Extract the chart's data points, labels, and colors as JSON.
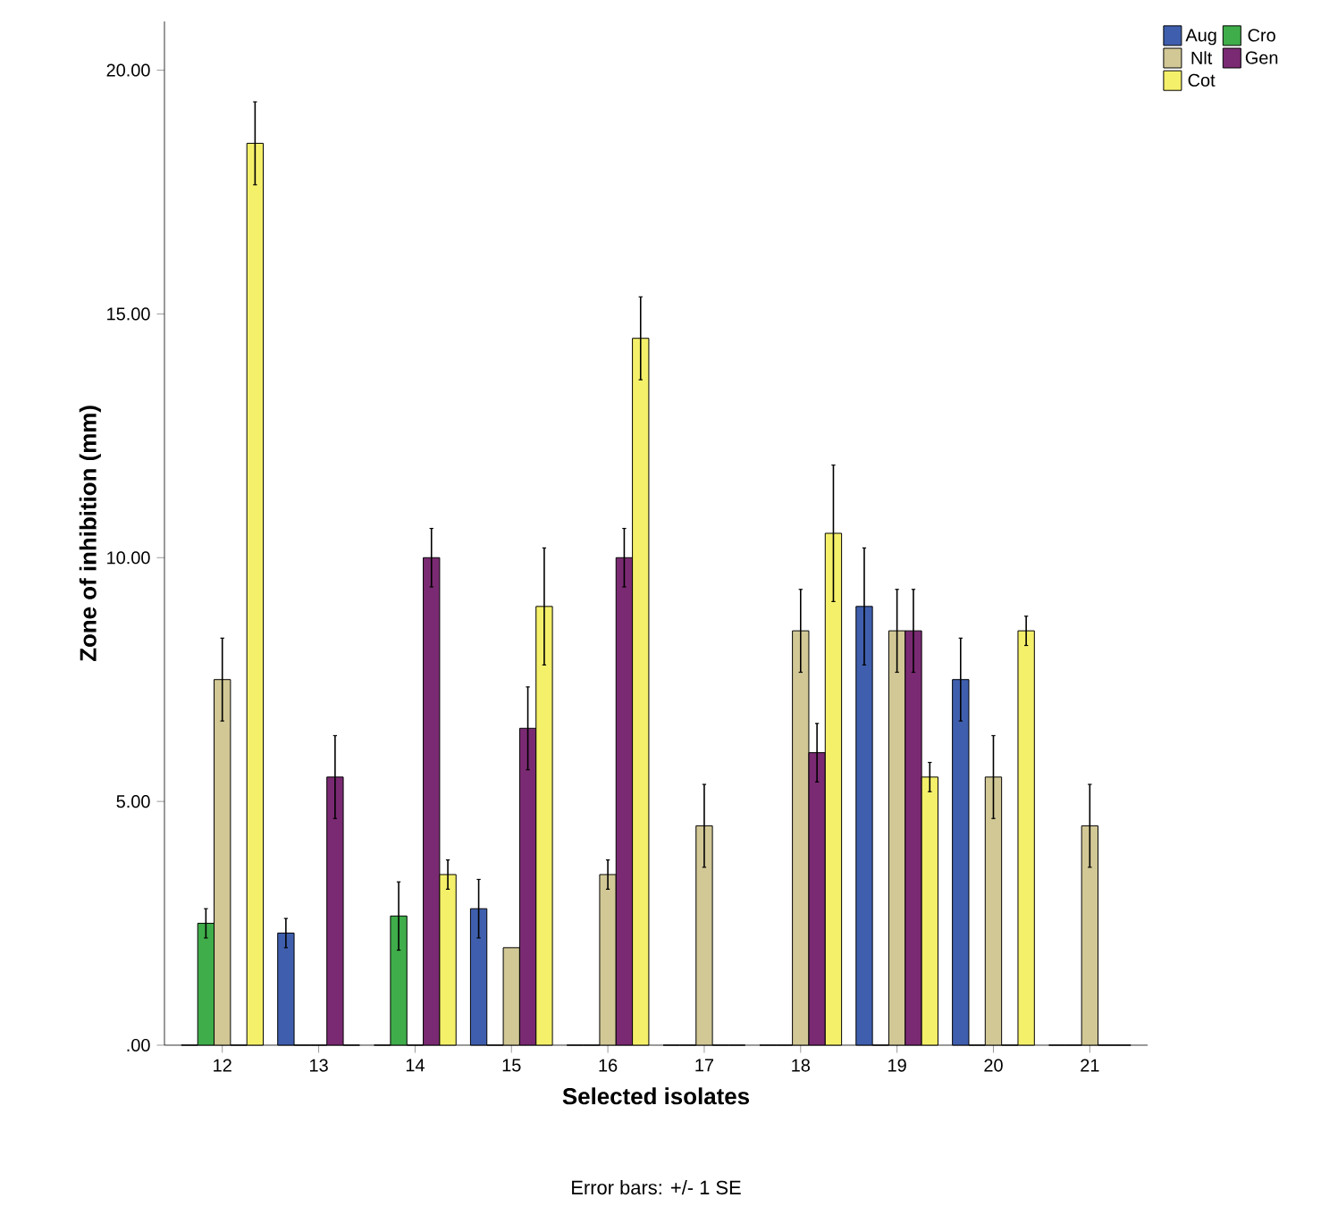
{
  "chart_data": {
    "type": "bar",
    "xlabel": "Selected isolates",
    "ylabel": "Zone of inhibition (mm)",
    "categories": [
      "12",
      "13",
      "14",
      "15",
      "16",
      "17",
      "18",
      "19",
      "20",
      "21"
    ],
    "series": [
      {
        "name": "Aug",
        "color": "#3f5fae",
        "values": [
          0,
          2.3,
          0,
          2.8,
          0,
          0,
          0,
          9.0,
          7.5,
          0
        ],
        "errors": [
          null,
          0.3,
          null,
          0.6,
          null,
          null,
          null,
          1.2,
          0.85,
          null
        ]
      },
      {
        "name": "Cro",
        "color": "#3fad4a",
        "values": [
          2.5,
          0,
          2.65,
          0,
          0,
          0,
          0,
          0,
          0,
          0
        ],
        "errors": [
          0.3,
          null,
          0.7,
          null,
          null,
          null,
          null,
          null,
          null,
          null
        ]
      },
      {
        "name": "Nlt",
        "color": "#d2c896",
        "values": [
          7.5,
          0,
          0,
          2.0,
          3.5,
          4.5,
          8.5,
          8.5,
          5.5,
          4.5
        ],
        "errors": [
          0.85,
          null,
          null,
          null,
          0.3,
          0.85,
          0.85,
          0.85,
          0.85,
          0.85
        ]
      },
      {
        "name": "Gen",
        "color": "#7a2a72",
        "values": [
          0,
          5.5,
          10.0,
          6.5,
          10.0,
          0,
          6.0,
          8.5,
          0,
          0
        ],
        "errors": [
          null,
          0.85,
          0.6,
          0.85,
          0.6,
          null,
          0.6,
          0.85,
          null,
          null
        ]
      },
      {
        "name": "Cot",
        "color": "#f5f06a",
        "values": [
          18.5,
          0,
          3.5,
          9.0,
          14.5,
          0,
          10.5,
          5.5,
          8.5,
          0
        ],
        "errors": [
          0.85,
          null,
          0.3,
          1.2,
          0.85,
          null,
          1.4,
          0.3,
          0.3,
          null
        ]
      }
    ],
    "ylim": [
      0,
      21
    ],
    "yticks": [
      {
        "value": 0,
        "label": ".00"
      },
      {
        "value": 5,
        "label": "5.00"
      },
      {
        "value": 10,
        "label": "10.00"
      },
      {
        "value": 15,
        "label": "15.00"
      },
      {
        "value": 20,
        "label": "20.00"
      }
    ],
    "legend": "top right",
    "annotations": [
      "Error bars: +/- 1 SE"
    ]
  }
}
